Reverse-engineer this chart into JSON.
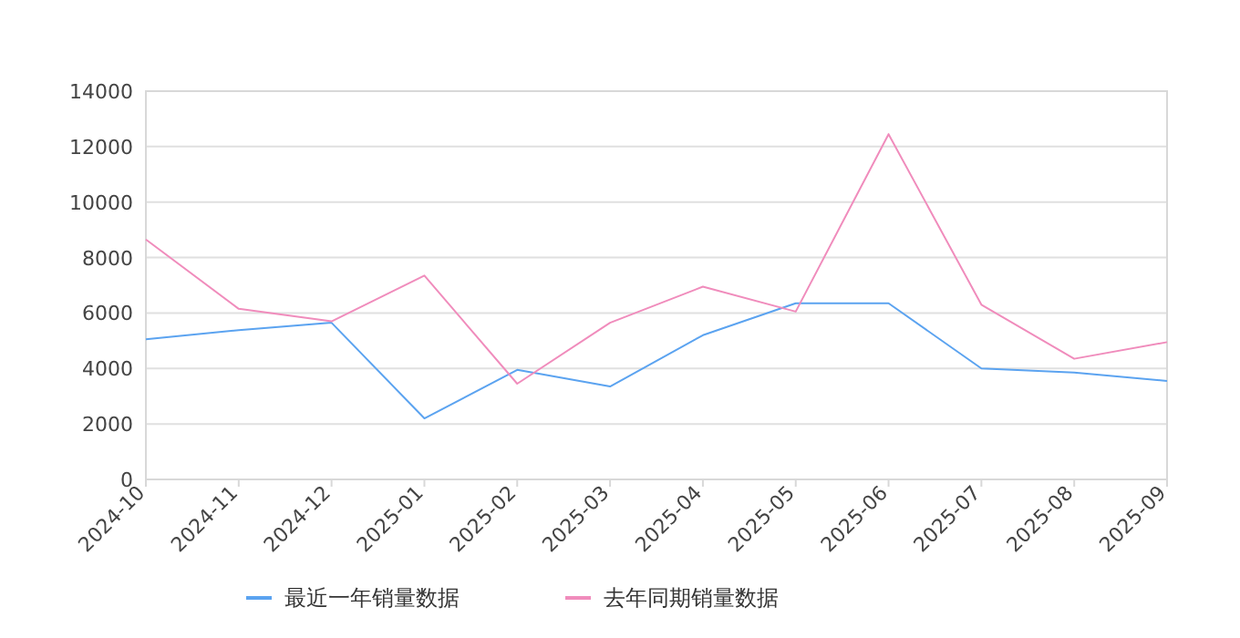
{
  "chart_data": {
    "type": "line",
    "categories": [
      "2024-10",
      "2024-11",
      "2024-12",
      "2025-01",
      "2025-02",
      "2025-03",
      "2025-04",
      "2025-05",
      "2025-06",
      "2025-07",
      "2025-08",
      "2025-09"
    ],
    "series": [
      {
        "name": "最近一年销量数据",
        "color": "#5ba3f0",
        "values": [
          5050,
          5380,
          5650,
          2200,
          3950,
          3350,
          5200,
          6350,
          6350,
          4000,
          3850,
          3550
        ]
      },
      {
        "name": "去年同期销量数据",
        "color": "#f08cbc",
        "values": [
          8650,
          6150,
          5700,
          7350,
          3450,
          5650,
          6950,
          6050,
          12450,
          6300,
          4350,
          4950
        ]
      }
    ],
    "ylim": [
      0,
      14000
    ],
    "yticks": [
      0,
      2000,
      4000,
      6000,
      8000,
      10000,
      12000,
      14000
    ],
    "grid": "y",
    "legend": "bottom"
  }
}
